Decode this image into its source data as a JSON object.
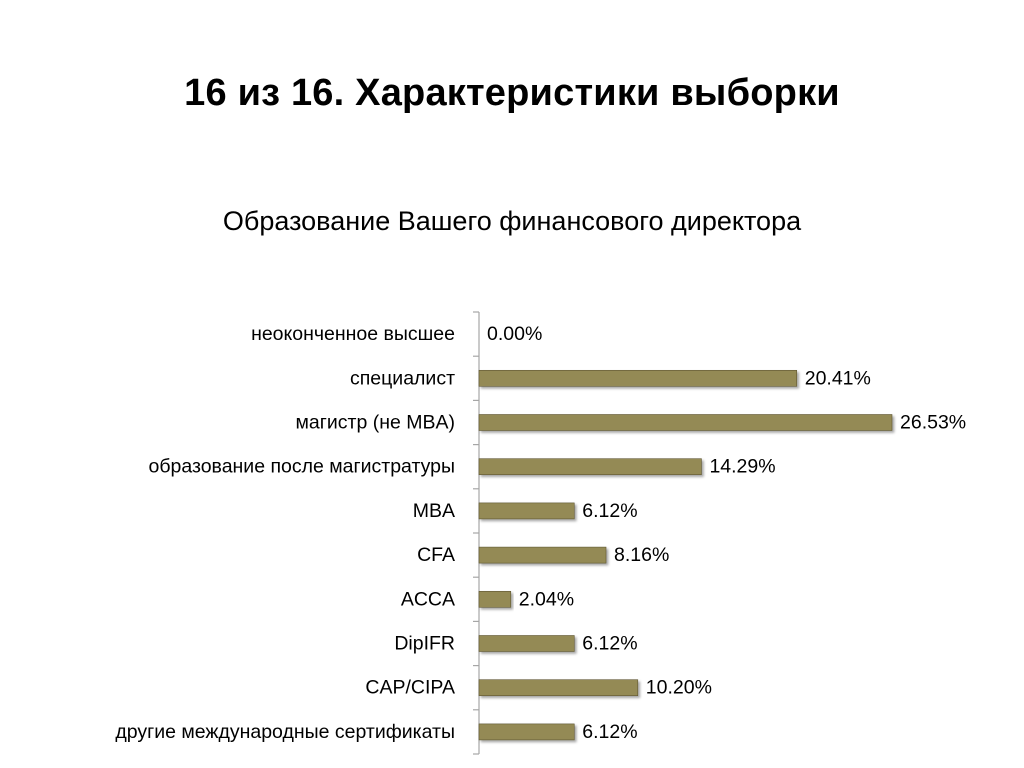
{
  "slide": {
    "title": "16 из 16. Характеристики выборки"
  },
  "colors": {
    "bar_fill": "#948A54",
    "bar_edge": "#5E5733",
    "axis": "#A6A6A6",
    "text": "#000000"
  },
  "chart_data": {
    "type": "bar",
    "orientation": "horizontal",
    "title": "Образование Вашего финансового директора",
    "xlabel": "",
    "ylabel": "",
    "categories": [
      "неоконченное высшее",
      "специалист",
      "магистр (не MBA)",
      "образование после магистратуры",
      "MBA",
      "CFA",
      "ACCA",
      "DipIFR",
      "CAP/CIPA",
      "другие международные сертификаты"
    ],
    "values": [
      0.0,
      20.41,
      26.53,
      14.29,
      6.12,
      8.16,
      2.04,
      6.12,
      10.2,
      6.12
    ],
    "data_labels": [
      "0.00%",
      "20.41%",
      "26.53%",
      "14.29%",
      "6.12%",
      "8.16%",
      "2.04%",
      "6.12%",
      "10.20%",
      "6.12%"
    ],
    "xlim": [
      0,
      26.53
    ],
    "grid": false,
    "legend": "none"
  }
}
